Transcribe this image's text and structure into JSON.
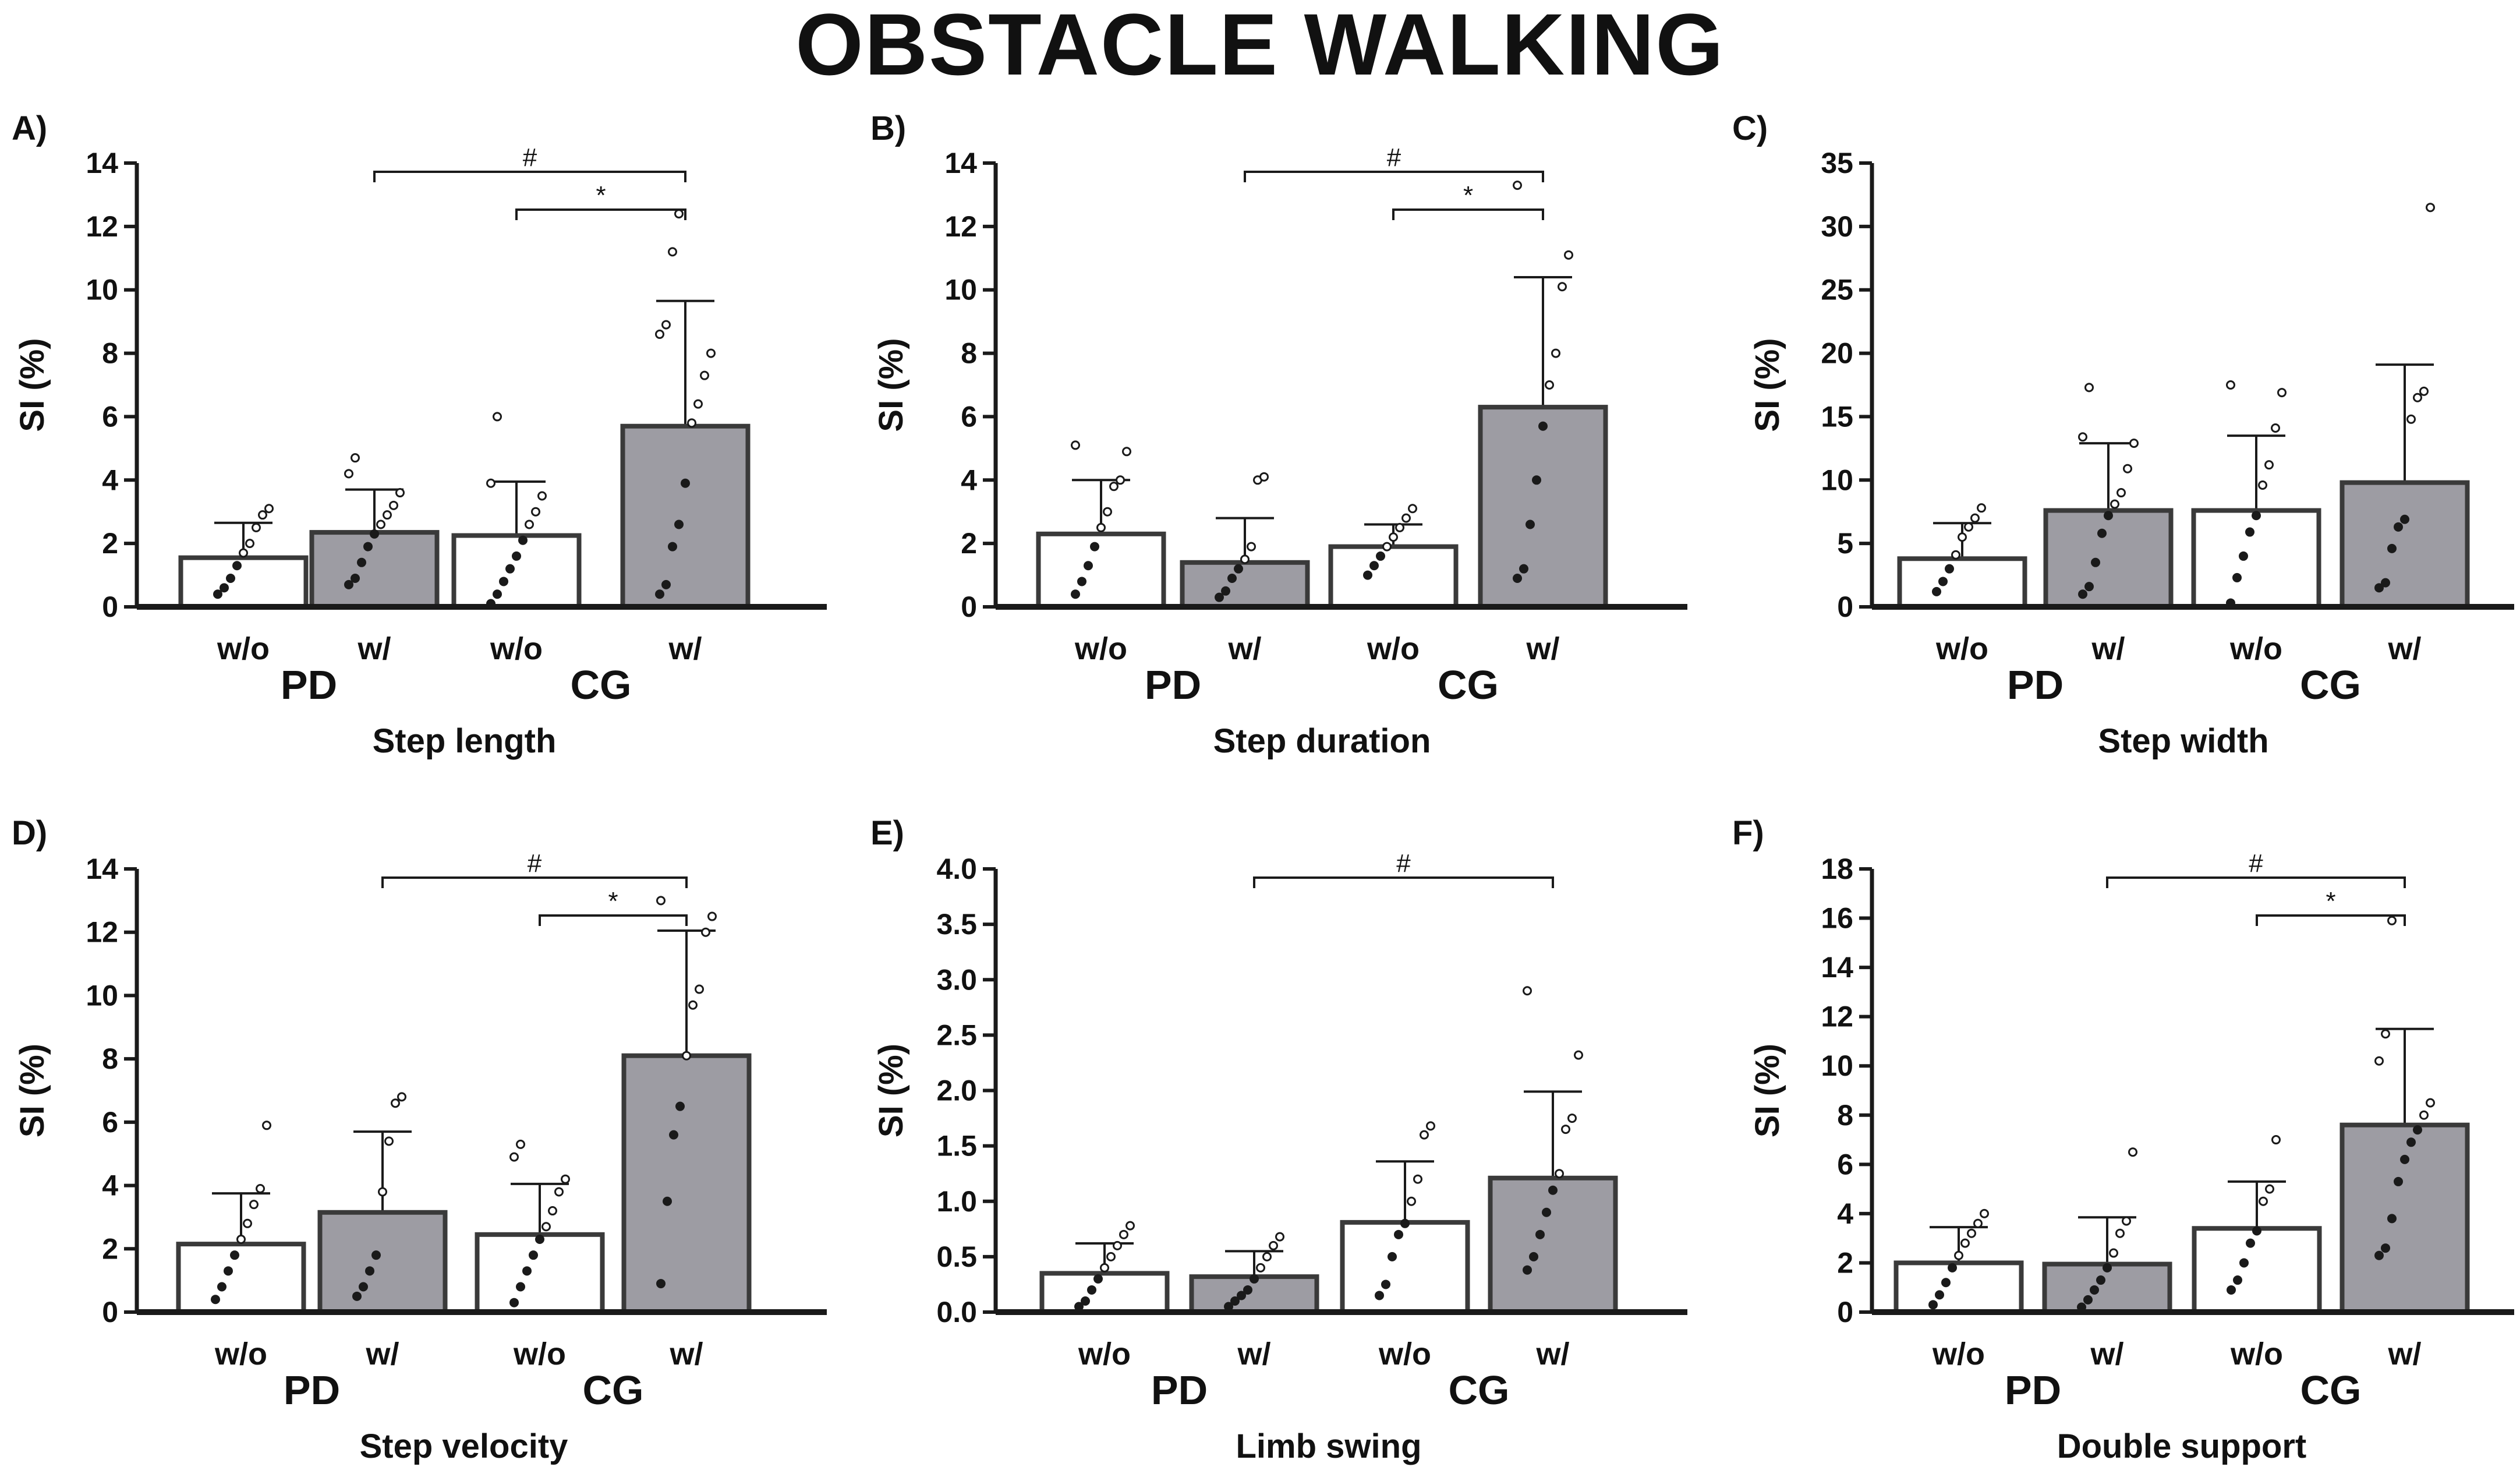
{
  "figure_title": "OBSTACLE WALKING",
  "colors": {
    "open_bar": "#ffffff",
    "filled_bar": "#9d9ca3",
    "ink": "#1a1a1a"
  },
  "chart_data": [
    {
      "type": "bar",
      "panel": "A)",
      "title": "Step length",
      "ylabel": "SI (%)",
      "ylim": [
        0,
        14
      ],
      "yticks": [
        0,
        2,
        4,
        6,
        8,
        10,
        12,
        14
      ],
      "categories": [
        "w/o",
        "w/",
        "w/o",
        "w/"
      ],
      "groups": [
        "PD",
        "CG"
      ],
      "values": [
        1.55,
        2.35,
        2.25,
        5.7
      ],
      "sd": [
        1.1,
        1.35,
        1.7,
        3.95
      ],
      "points": [
        [
          0.4,
          0.6,
          0.9,
          1.3,
          1.7,
          2.0,
          2.5,
          2.9,
          3.1
        ],
        [
          0.7,
          0.9,
          1.4,
          1.9,
          2.3,
          2.6,
          2.9,
          3.2,
          3.6,
          4.2,
          4.7
        ],
        [
          0.1,
          0.4,
          0.8,
          1.2,
          1.6,
          2.1,
          2.6,
          3.0,
          3.5,
          3.9,
          6.0
        ],
        [
          0.4,
          0.7,
          1.9,
          2.6,
          3.9,
          5.8,
          6.4,
          7.3,
          8.0,
          8.6,
          8.9,
          11.2,
          12.4
        ]
      ],
      "comparisons": [
        {
          "from": 1,
          "to": 3,
          "label": "#"
        },
        {
          "from": 2,
          "to": 3,
          "label": "*"
        }
      ]
    },
    {
      "type": "bar",
      "panel": "B)",
      "title": "Step duration",
      "ylabel": "SI (%)",
      "ylim": [
        0,
        14
      ],
      "yticks": [
        0,
        2,
        4,
        6,
        8,
        10,
        12,
        14
      ],
      "categories": [
        "w/o",
        "w/",
        "w/o",
        "w/"
      ],
      "groups": [
        "PD",
        "CG"
      ],
      "values": [
        2.3,
        1.4,
        1.9,
        6.3
      ],
      "sd": [
        1.7,
        1.4,
        0.7,
        4.1
      ],
      "points": [
        [
          0.4,
          0.8,
          1.3,
          1.9,
          2.5,
          3.0,
          3.8,
          4.0,
          4.9,
          5.1
        ],
        [
          0.3,
          0.5,
          0.9,
          1.2,
          1.5,
          1.9,
          4.0,
          4.1
        ],
        [
          1.0,
          1.3,
          1.6,
          1.9,
          2.2,
          2.5,
          2.8,
          3.1
        ],
        [
          0.9,
          1.2,
          2.6,
          4.0,
          5.7,
          7.0,
          8.0,
          10.1,
          11.1,
          13.3
        ]
      ],
      "comparisons": [
        {
          "from": 1,
          "to": 3,
          "label": "#"
        },
        {
          "from": 2,
          "to": 3,
          "label": "*"
        }
      ]
    },
    {
      "type": "bar",
      "panel": "C)",
      "title": "Step width",
      "ylabel": "SI (%)",
      "ylim": [
        0,
        35
      ],
      "yticks": [
        0,
        5,
        10,
        15,
        20,
        25,
        30,
        35
      ],
      "categories": [
        "w/o",
        "w/",
        "w/o",
        "w/"
      ],
      "groups": [
        "PD",
        "CG"
      ],
      "values": [
        3.8,
        7.6,
        7.6,
        9.8
      ],
      "sd": [
        2.8,
        5.3,
        5.9,
        9.3
      ],
      "points": [
        [
          1.2,
          2.0,
          3.0,
          4.1,
          5.5,
          6.3,
          7.0,
          7.8
        ],
        [
          1.0,
          1.6,
          3.5,
          5.8,
          7.2,
          8.1,
          9.0,
          10.9,
          12.9,
          13.4,
          17.3
        ],
        [
          0.3,
          2.3,
          4.0,
          5.9,
          7.2,
          9.6,
          11.2,
          14.1,
          16.9,
          17.5
        ],
        [
          1.5,
          1.9,
          4.6,
          6.3,
          6.9,
          14.8,
          16.5,
          17.0,
          31.5
        ]
      ],
      "comparisons": []
    },
    {
      "type": "bar",
      "panel": "D)",
      "title": "Step velocity",
      "ylabel": "SI (%)",
      "ylim": [
        0,
        14
      ],
      "yticks": [
        0,
        2,
        4,
        6,
        8,
        10,
        12,
        14
      ],
      "categories": [
        "w/o",
        "w/",
        "w/o",
        "w/"
      ],
      "groups": [
        "PD",
        "CG"
      ],
      "values": [
        2.15,
        3.15,
        2.45,
        8.1
      ],
      "sd": [
        1.6,
        2.55,
        1.6,
        3.95
      ],
      "points": [
        [
          0.4,
          0.8,
          1.3,
          1.8,
          2.3,
          2.8,
          3.4,
          3.9,
          5.9
        ],
        [
          0.5,
          0.8,
          1.3,
          1.8,
          3.8,
          5.4,
          6.6,
          6.8
        ],
        [
          0.3,
          0.8,
          1.3,
          1.8,
          2.3,
          2.7,
          3.2,
          3.8,
          4.2,
          4.9,
          5.3
        ],
        [
          0.9,
          3.5,
          5.6,
          6.5,
          8.1,
          9.7,
          10.2,
          12.0,
          12.5,
          13.0
        ]
      ],
      "comparisons": [
        {
          "from": 1,
          "to": 3,
          "label": "#"
        },
        {
          "from": 2,
          "to": 3,
          "label": "*"
        }
      ]
    },
    {
      "type": "bar",
      "panel": "E)",
      "title": "Limb swing",
      "ylabel": "SI (%)",
      "ylim": [
        0,
        4
      ],
      "yticks": [
        0,
        0.5,
        1.0,
        1.5,
        2.0,
        2.5,
        3.0,
        3.5,
        4.0
      ],
      "ytick_labels": [
        "0.0",
        "0.5",
        "1.0",
        "1.5",
        "2.0",
        "2.5",
        "3.0",
        "3.5",
        "4.0"
      ],
      "categories": [
        "w/o",
        "w/",
        "w/o",
        "w/"
      ],
      "groups": [
        "PD",
        "CG"
      ],
      "values": [
        0.35,
        0.32,
        0.81,
        1.21
      ],
      "sd": [
        0.27,
        0.23,
        0.55,
        0.78
      ],
      "points": [
        [
          0.05,
          0.1,
          0.2,
          0.3,
          0.4,
          0.5,
          0.6,
          0.7,
          0.78
        ],
        [
          0.05,
          0.1,
          0.15,
          0.2,
          0.3,
          0.4,
          0.5,
          0.6,
          0.68
        ],
        [
          0.15,
          0.25,
          0.5,
          0.7,
          0.8,
          1.0,
          1.2,
          1.6,
          1.68
        ],
        [
          0.38,
          0.5,
          0.7,
          0.9,
          1.1,
          1.25,
          1.65,
          1.75,
          2.32,
          2.9
        ]
      ],
      "comparisons": [
        {
          "from": 1,
          "to": 3,
          "label": "#"
        }
      ]
    },
    {
      "type": "bar",
      "panel": "F)",
      "title": "Double support",
      "ylabel": "SI (%)",
      "ylim": [
        0,
        18
      ],
      "yticks": [
        0,
        2,
        4,
        6,
        8,
        10,
        12,
        14,
        16,
        18
      ],
      "categories": [
        "w/o",
        "w/",
        "w/o",
        "w/"
      ],
      "groups": [
        "PD",
        "CG"
      ],
      "values": [
        2.0,
        1.95,
        3.4,
        7.6
      ],
      "sd": [
        1.45,
        1.9,
        1.9,
        3.9
      ],
      "points": [
        [
          0.3,
          0.7,
          1.2,
          1.8,
          2.3,
          2.8,
          3.2,
          3.6,
          4.0
        ],
        [
          0.2,
          0.5,
          0.9,
          1.3,
          1.8,
          2.4,
          3.2,
          3.7,
          6.5
        ],
        [
          0.9,
          1.3,
          2.0,
          2.8,
          3.3,
          4.5,
          5.0,
          7.0
        ],
        [
          2.3,
          2.6,
          3.8,
          5.3,
          6.2,
          6.9,
          7.4,
          8.0,
          8.5,
          10.2,
          11.3,
          15.9
        ]
      ],
      "comparisons": [
        {
          "from": 1,
          "to": 3,
          "label": "#"
        },
        {
          "from": 2,
          "to": 3,
          "label": "*"
        }
      ]
    }
  ]
}
